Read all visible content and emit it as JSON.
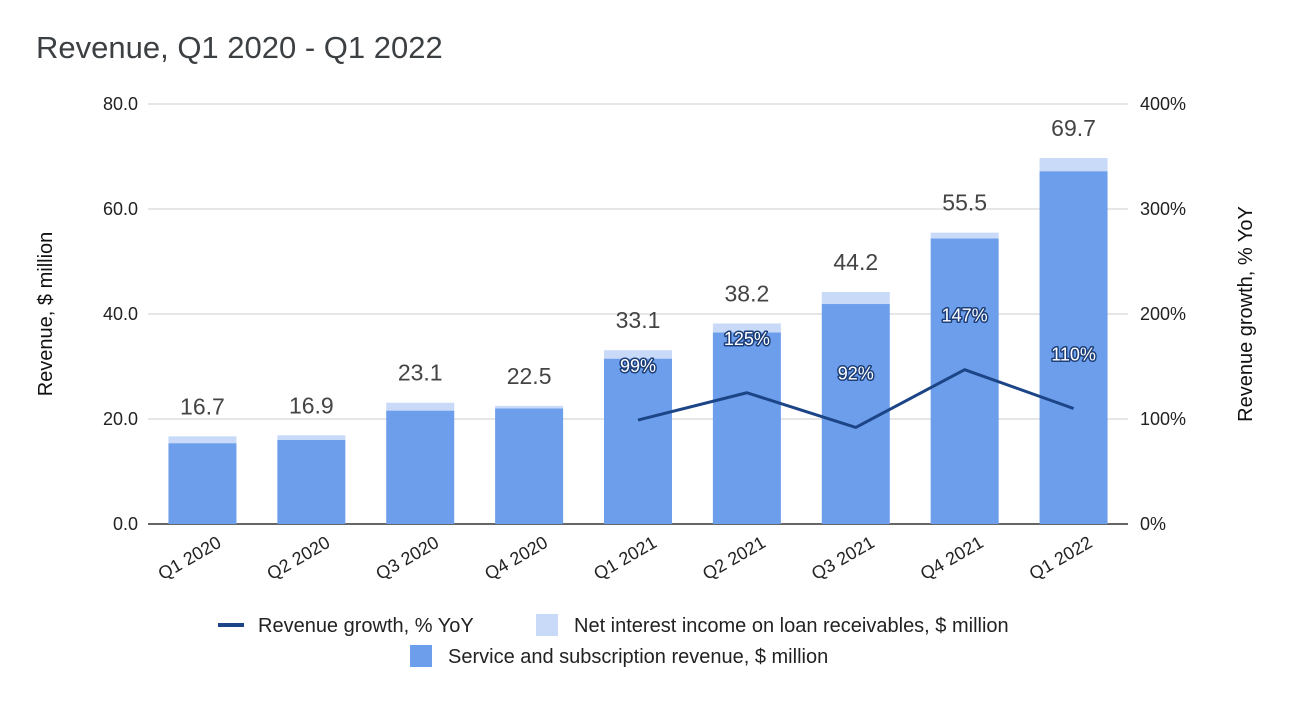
{
  "chart_data": {
    "type": "bar",
    "stacked": true,
    "title": "Revenue, Q1 2020 - Q1 2022",
    "ylabel": "Revenue, $ million",
    "y2label": "Revenue growth, % YoY",
    "ylim": [
      0,
      80
    ],
    "y2lim": [
      0,
      400
    ],
    "yticks": [
      "0.0",
      "20.0",
      "40.0",
      "60.0",
      "80.0"
    ],
    "y2ticks": [
      "0%",
      "100%",
      "200%",
      "300%",
      "400%"
    ],
    "categories": [
      "Q1 2020",
      "Q2 2020",
      "Q3 2020",
      "Q4 2020",
      "Q1 2021",
      "Q2 2021",
      "Q3 2021",
      "Q4 2021",
      "Q1 2022"
    ],
    "grid": true,
    "legend_position": "bottom",
    "series": [
      {
        "name": "Service and subscription revenue, $ million",
        "kind": "bar",
        "color": "#6d9eeb",
        "values": [
          15.4,
          16.0,
          21.6,
          22.0,
          31.5,
          36.5,
          41.9,
          54.4,
          67.2
        ]
      },
      {
        "name": "Net interest income on loan receivables, $ million",
        "kind": "bar",
        "color": "#c9daf8",
        "values": [
          1.3,
          0.9,
          1.5,
          0.5,
          1.6,
          1.7,
          2.3,
          1.1,
          2.5
        ]
      },
      {
        "name": "Revenue growth, % YoY",
        "kind": "line",
        "axis": "right",
        "color": "#1c4587",
        "values": [
          null,
          null,
          null,
          null,
          99,
          125,
          92,
          147,
          110
        ]
      }
    ],
    "total_labels": [
      "16.7",
      "16.9",
      "23.1",
      "22.5",
      "33.1",
      "38.2",
      "44.2",
      "55.5",
      "69.7"
    ],
    "growth_labels": [
      "",
      "",
      "",
      "",
      "99%",
      "125%",
      "92%",
      "147%",
      "110%"
    ],
    "legend_order": [
      "Revenue growth, % YoY",
      "Net interest income on loan receivables, $ million",
      "Service and subscription revenue, $ million"
    ]
  }
}
